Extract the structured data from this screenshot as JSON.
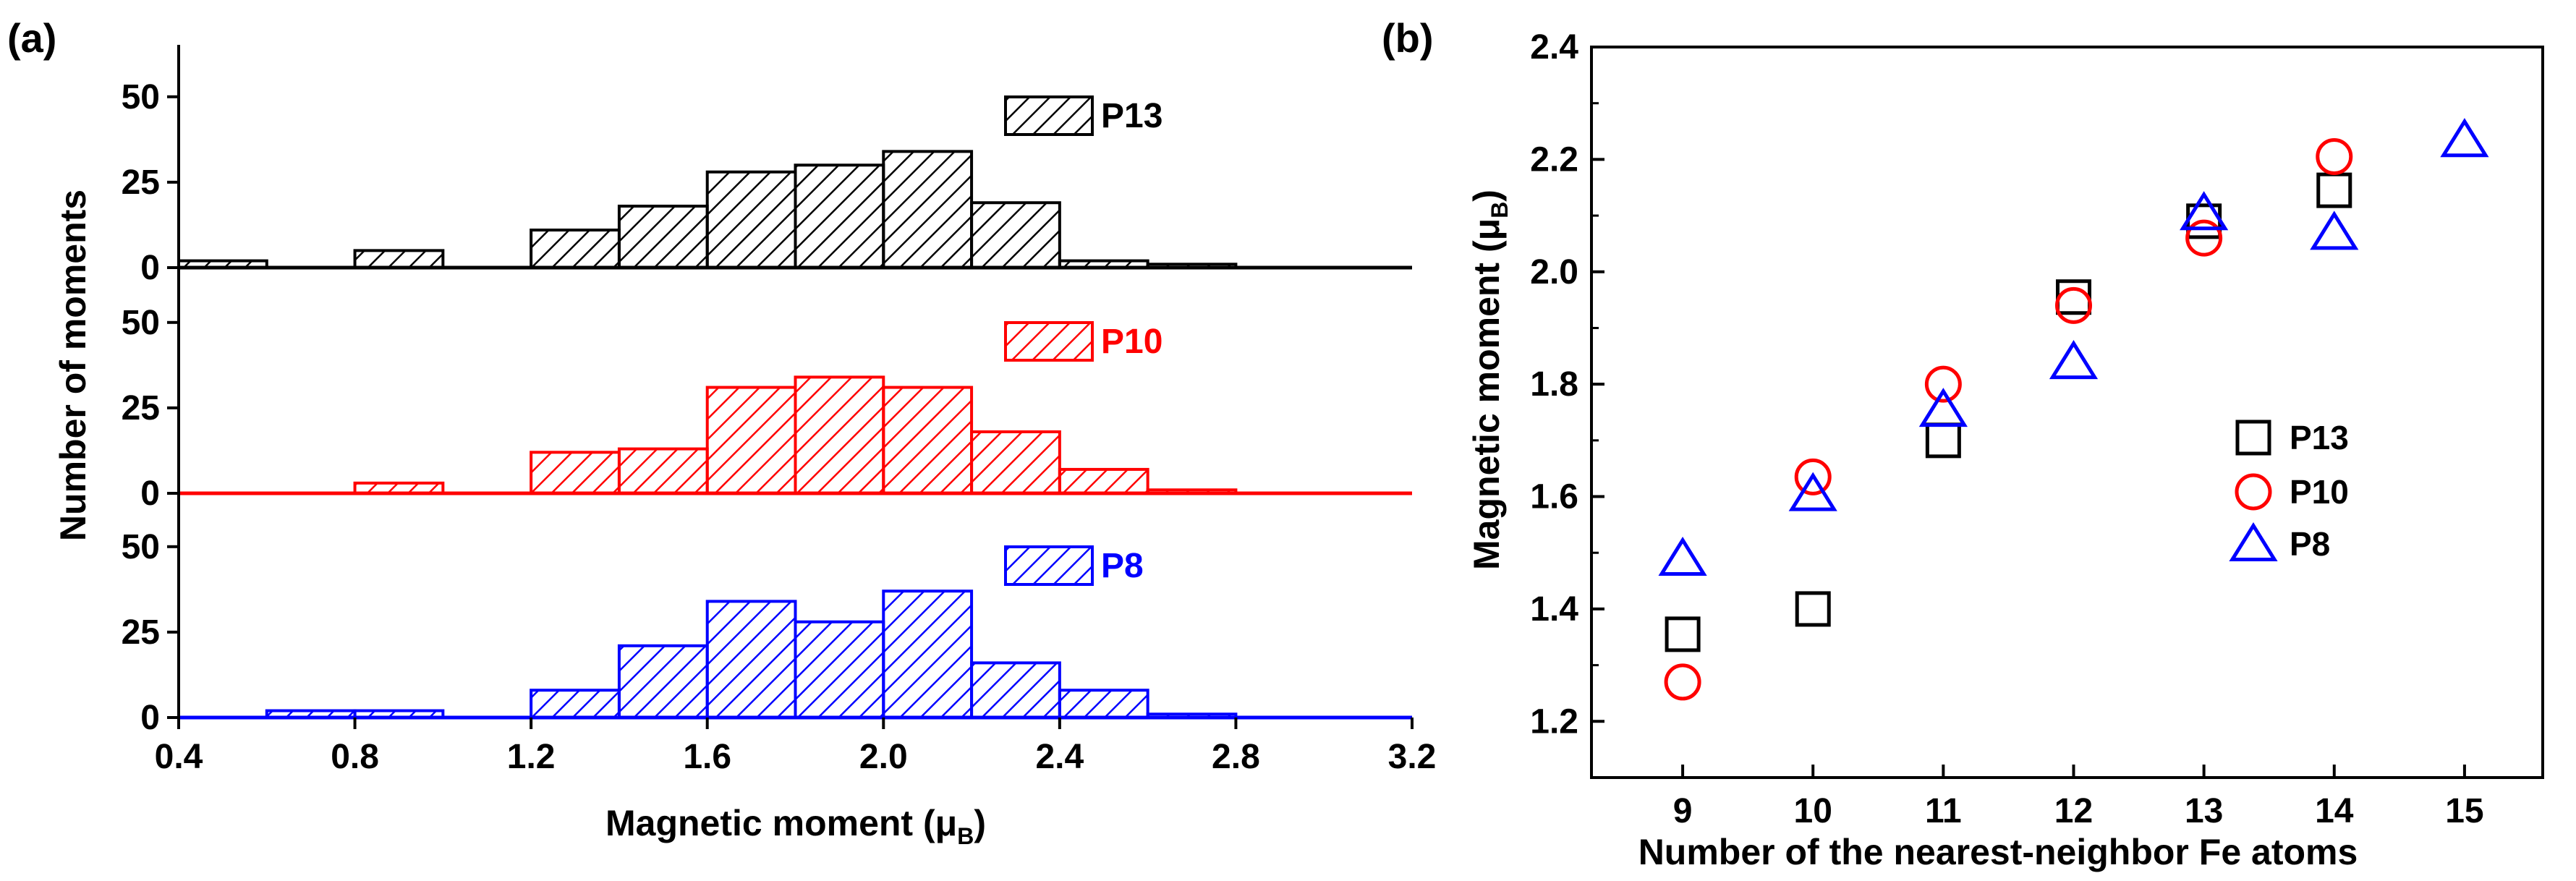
{
  "colors": {
    "P13": "#000000",
    "P10": "#ff0000",
    "P8": "#0000ff",
    "axis": "#000000"
  },
  "chart_data": [
    {
      "type": "bar",
      "panel_label": "(a)",
      "xlabel_main": "Magnetic moment (μ",
      "xlabel_sub": "B",
      "xlabel_end": ")",
      "ylabel": "Number of moments",
      "xlim": [
        0.4,
        3.2
      ],
      "x_ticks": [
        "0.4",
        "0.8",
        "1.2",
        "1.6",
        "2.0",
        "2.4",
        "2.8",
        "3.2"
      ],
      "y_ticks": [
        "0",
        "25",
        "50"
      ],
      "bin_width": 0.2,
      "subplots": [
        {
          "name": "P13",
          "color_key": "P13",
          "ylim": [
            0,
            58
          ],
          "bins": [
            {
              "x": 0.4,
              "value": 2
            },
            {
              "x": 0.8,
              "value": 5
            },
            {
              "x": 1.2,
              "value": 11
            },
            {
              "x": 1.4,
              "value": 18
            },
            {
              "x": 1.6,
              "value": 28
            },
            {
              "x": 1.8,
              "value": 30
            },
            {
              "x": 2.0,
              "value": 34
            },
            {
              "x": 2.2,
              "value": 19
            },
            {
              "x": 2.4,
              "value": 2
            },
            {
              "x": 2.6,
              "value": 1
            }
          ]
        },
        {
          "name": "P10",
          "color_key": "P10",
          "ylim": [
            0,
            58
          ],
          "bins": [
            {
              "x": 0.8,
              "value": 3
            },
            {
              "x": 1.2,
              "value": 12
            },
            {
              "x": 1.4,
              "value": 13
            },
            {
              "x": 1.6,
              "value": 31
            },
            {
              "x": 1.8,
              "value": 34
            },
            {
              "x": 2.0,
              "value": 31
            },
            {
              "x": 2.2,
              "value": 18
            },
            {
              "x": 2.4,
              "value": 7
            },
            {
              "x": 2.6,
              "value": 1
            }
          ]
        },
        {
          "name": "P8",
          "color_key": "P8",
          "ylim": [
            0,
            58
          ],
          "bins": [
            {
              "x": 0.6,
              "value": 2
            },
            {
              "x": 0.8,
              "value": 2
            },
            {
              "x": 1.2,
              "value": 8
            },
            {
              "x": 1.4,
              "value": 21
            },
            {
              "x": 1.6,
              "value": 34
            },
            {
              "x": 1.8,
              "value": 28
            },
            {
              "x": 2.0,
              "value": 37
            },
            {
              "x": 2.2,
              "value": 16
            },
            {
              "x": 2.4,
              "value": 8
            },
            {
              "x": 2.6,
              "value": 1
            }
          ]
        }
      ]
    },
    {
      "type": "scatter",
      "panel_label": "(b)",
      "xlabel": "Number of the nearest-neighbor Fe atoms",
      "ylabel_main": "Magnetic moment (μ",
      "ylabel_sub": "B",
      "ylabel_end": ")",
      "xlim": [
        8.3,
        15.6
      ],
      "ylim": [
        1.1,
        2.4
      ],
      "x_ticks": [
        "9",
        "10",
        "11",
        "12",
        "13",
        "14",
        "15"
      ],
      "y_ticks": [
        "1.2",
        "1.4",
        "1.6",
        "1.8",
        "2.0",
        "2.2",
        "2.4"
      ],
      "legend_position": "center-right",
      "series": [
        {
          "name": "P13",
          "marker": "square",
          "color_key": "P13",
          "x": [
            9,
            10,
            11,
            12,
            13,
            14
          ],
          "y": [
            1.355,
            1.4,
            1.7,
            1.955,
            2.09,
            2.145
          ]
        },
        {
          "name": "P10",
          "marker": "circle",
          "color_key": "P10",
          "x": [
            9,
            10,
            11,
            12,
            13,
            14
          ],
          "y": [
            1.27,
            1.635,
            1.8,
            1.94,
            2.06,
            2.205
          ]
        },
        {
          "name": "P8",
          "marker": "triangle",
          "color_key": "P8",
          "x": [
            9,
            10,
            11,
            12,
            13,
            14,
            15
          ],
          "y": [
            1.49,
            1.605,
            1.755,
            1.84,
            2.105,
            2.07,
            2.235
          ]
        }
      ]
    }
  ]
}
